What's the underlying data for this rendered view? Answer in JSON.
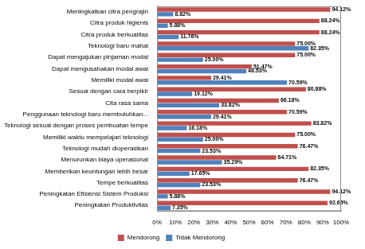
{
  "chart_data": {
    "type": "bar",
    "orientation": "horizontal",
    "grid": false,
    "legend": "bottom",
    "data_labels": true,
    "categories": [
      "Meningkatkan citra pengrajin",
      "Citra produk higienis",
      "Citra produk berkualitas",
      "Teknologi baru mahal",
      "Dapat mengajukan pinjaman modal",
      "Dapat mengusahakan modal awal",
      "Memiliki modal awal",
      "Sesuai dengan cara berpikir",
      "Cita rasa sama",
      "Penggunaan teknologi baru membutuhkan...",
      "Teknologi sesuai dengan proses pembuatan tempe",
      "Memiliki waktu mempelajari teknologi",
      "Teknologi mudah dioperasikan",
      "Menurunkan biaya operasional",
      "Memberikan keuntungan lebih besar",
      "Tempe berkualitas",
      "Peningkatan Efisiensi Sistem Produksi",
      "Peningkatan Produktivitas"
    ],
    "series": [
      {
        "name": "Mendorong",
        "color": "#c0504d",
        "values": [
          94.12,
          88.24,
          88.24,
          75.0,
          75.0,
          51.47,
          29.41,
          80.88,
          66.18,
          70.59,
          83.82,
          75.0,
          76.47,
          64.71,
          82.35,
          76.47,
          94.12,
          92.65
        ],
        "value_labels": [
          "94.12%",
          "88.24%",
          "88.24%",
          "75.00%",
          "75.00%",
          "51.47%",
          "29.41%",
          "80.88%",
          "66.18%",
          "70.59%",
          "83.82%",
          "75.00%",
          "76.47%",
          "64.71%",
          "82.35%",
          "76.47%",
          "94.12%",
          "92.65%"
        ]
      },
      {
        "name": "Tidak Mendorong",
        "color": "#4f81bd",
        "values": [
          8.82,
          5.88,
          11.76,
          82.35,
          25.0,
          48.53,
          70.59,
          19.12,
          33.82,
          29.41,
          16.18,
          25.0,
          23.53,
          35.29,
          17.65,
          23.53,
          5.88,
          7.35
        ],
        "value_labels": [
          "8.82%",
          "5.88%",
          "11.76%",
          "82.35%",
          "25.00%",
          "48.53%",
          "70.59%",
          "19.12%",
          "33.82%",
          "29.41%",
          "16.18%",
          "25.00%",
          "23.53%",
          "35.29%",
          "17.65%",
          "23.53%",
          "5.88%",
          "7.35%"
        ]
      }
    ],
    "xlim": [
      0,
      100
    ],
    "xticks": [
      {
        "value": 0,
        "label": "0%"
      },
      {
        "value": 10,
        "label": "10%"
      },
      {
        "value": 20,
        "label": "20%"
      },
      {
        "value": 30,
        "label": "30%"
      },
      {
        "value": 40,
        "label": "40%"
      },
      {
        "value": 50,
        "label": "50%"
      },
      {
        "value": 60,
        "label": "60%"
      },
      {
        "value": 70,
        "label": "70%"
      },
      {
        "value": 80,
        "label": "80%"
      },
      {
        "value": 90,
        "label": "90%"
      },
      {
        "value": 100,
        "label": "100%"
      }
    ]
  }
}
